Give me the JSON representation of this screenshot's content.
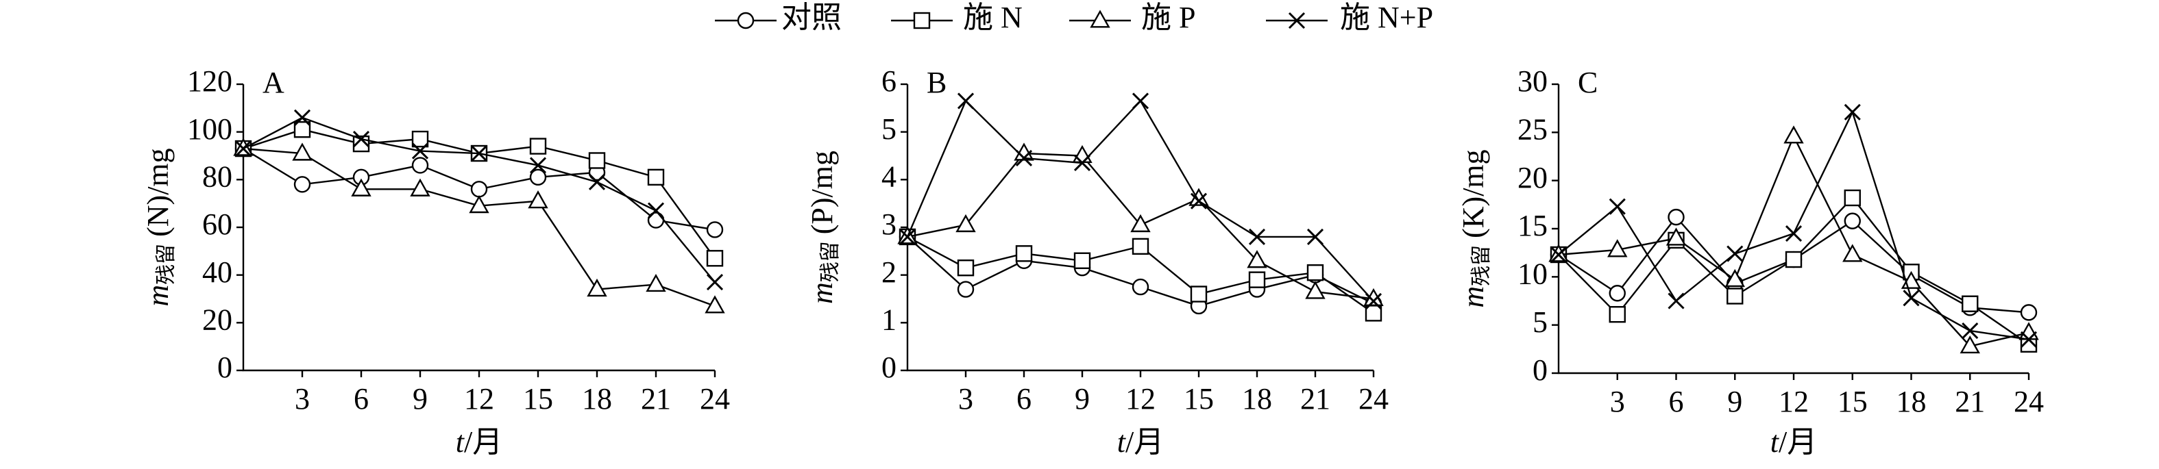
{
  "legend": [
    {
      "name": "对照",
      "marker": "circle"
    },
    {
      "name": "施 N",
      "marker": "square"
    },
    {
      "name": "施 P",
      "marker": "triangle"
    },
    {
      "name": "施 N+P",
      "marker": "cross"
    }
  ],
  "chart_data": [
    {
      "type": "line",
      "label": "A",
      "ylabel": {
        "symbol": "m",
        "subscript": "残留",
        "text": "(N)/mg"
      },
      "xlabel": {
        "symbol": "t",
        "text": "/月"
      },
      "x": [
        0,
        3,
        6,
        9,
        12,
        15,
        18,
        21,
        24
      ],
      "xlim": [
        0,
        24
      ],
      "xticks": [
        3,
        6,
        9,
        12,
        15,
        18,
        21,
        24
      ],
      "ylim": [
        0,
        120
      ],
      "yticks": [
        0,
        20,
        40,
        60,
        80,
        100,
        120
      ],
      "series": [
        {
          "values": [
            93,
            78,
            81,
            86,
            76,
            81,
            83,
            63,
            59
          ]
        },
        {
          "values": [
            93,
            101,
            95,
            97,
            91,
            94,
            88,
            81,
            47
          ]
        },
        {
          "values": [
            93,
            91,
            76,
            76,
            69,
            71,
            34,
            36,
            27
          ]
        },
        {
          "values": [
            93,
            106,
            97,
            92,
            91,
            86,
            79,
            67,
            37
          ]
        }
      ]
    },
    {
      "type": "line",
      "label": "B",
      "ylabel": {
        "symbol": "m",
        "subscript": "残留",
        "text": "(P)/mg"
      },
      "xlabel": {
        "symbol": "t",
        "text": "/月"
      },
      "x": [
        0,
        3,
        6,
        9,
        12,
        15,
        18,
        21,
        24
      ],
      "xlim": [
        0,
        24
      ],
      "xticks": [
        3,
        6,
        9,
        12,
        15,
        18,
        21,
        24
      ],
      "ylim": [
        0,
        6
      ],
      "yticks": [
        0,
        1,
        2,
        3,
        4,
        5,
        6
      ],
      "series": [
        {
          "values": [
            2.8,
            1.7,
            2.3,
            2.15,
            1.75,
            1.35,
            1.7,
            2.0,
            1.4
          ]
        },
        {
          "values": [
            2.8,
            2.15,
            2.45,
            2.3,
            2.6,
            1.6,
            1.9,
            2.05,
            1.2
          ]
        },
        {
          "values": [
            2.8,
            3.05,
            4.55,
            4.5,
            3.05,
            3.6,
            2.3,
            1.65,
            1.5
          ]
        },
        {
          "values": [
            2.8,
            5.65,
            4.45,
            4.35,
            5.65,
            3.55,
            2.8,
            2.8,
            1.45
          ]
        }
      ]
    },
    {
      "type": "line",
      "label": "C",
      "ylabel": {
        "symbol": "m",
        "subscript": "残留",
        "text": "(K)/mg"
      },
      "xlabel": {
        "symbol": "t",
        "text": "/月"
      },
      "x": [
        0,
        3,
        6,
        9,
        12,
        15,
        18,
        21,
        24
      ],
      "xlim": [
        0,
        24
      ],
      "xticks": [
        3,
        6,
        9,
        12,
        15,
        18,
        21,
        24
      ],
      "ylim": [
        0,
        30
      ],
      "yticks": [
        0,
        5,
        10,
        15,
        20,
        25,
        30
      ],
      "series": [
        {
          "values": [
            12.3,
            8.3,
            16.2,
            9.3,
            11.8,
            15.8,
            10.2,
            6.8,
            6.3
          ]
        },
        {
          "values": [
            12.3,
            6.1,
            13.8,
            8.0,
            11.8,
            18.2,
            10.5,
            7.2,
            3.0
          ]
        },
        {
          "values": [
            12.3,
            12.8,
            14.0,
            9.7,
            24.6,
            12.3,
            9.5,
            2.8,
            4.2
          ]
        },
        {
          "values": [
            12.3,
            17.3,
            7.5,
            12.4,
            14.5,
            27.1,
            7.8,
            4.4,
            3.5
          ]
        }
      ]
    }
  ]
}
